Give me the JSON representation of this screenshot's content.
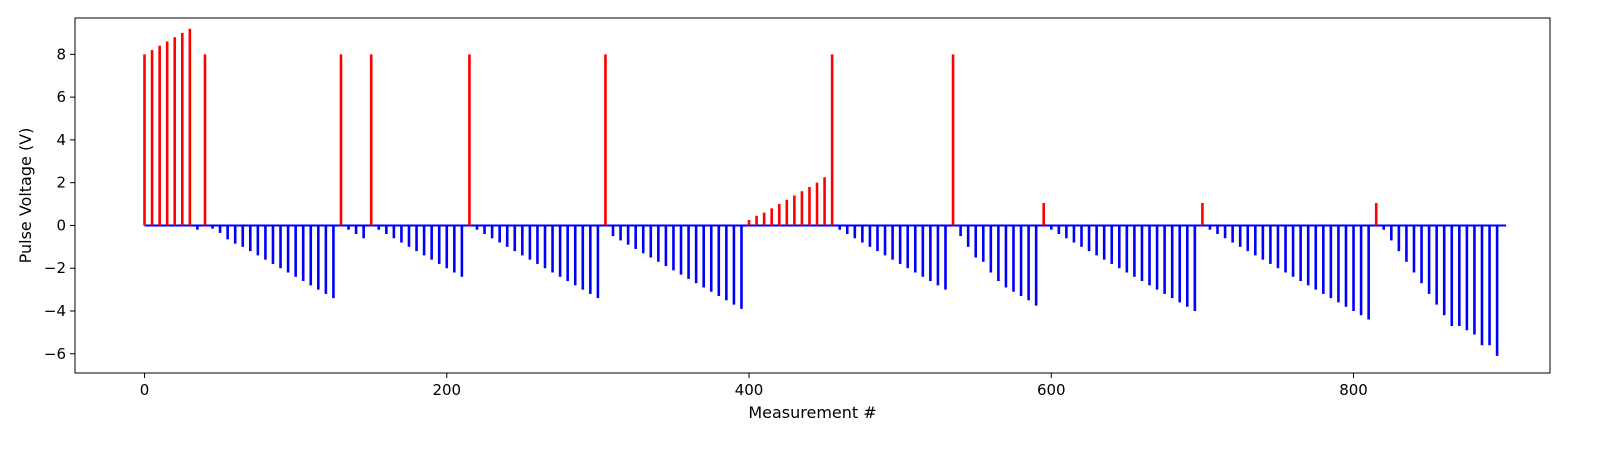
{
  "chart_data": {
    "type": "bar",
    "title": "",
    "xlabel": "Measurement #",
    "ylabel": "Pulse Voltage (V)",
    "xlim": [
      -46,
      930
    ],
    "ylim": [
      -6.9,
      9.7
    ],
    "xticks": [
      0,
      200,
      400,
      600,
      800
    ],
    "yticks": [
      -6,
      -4,
      -2,
      0,
      2,
      4,
      6,
      8
    ],
    "grid": false,
    "legend": "none",
    "colors": {
      "positive": "#ff0000",
      "negative": "#0000ff",
      "baseline": "#0000ff"
    },
    "baseline": {
      "x_start": 0,
      "x_end": 901,
      "y": 0
    },
    "series": [
      {
        "color": "#ff0000",
        "points": [
          [
            0,
            8.0
          ],
          [
            5,
            8.2
          ],
          [
            10,
            8.4
          ],
          [
            15,
            8.6
          ],
          [
            20,
            8.8
          ],
          [
            25,
            9.0
          ],
          [
            30,
            9.2
          ],
          [
            40,
            8.0
          ],
          [
            130,
            8.0
          ],
          [
            150,
            8.0
          ],
          [
            215,
            8.0
          ],
          [
            305,
            8.0
          ],
          [
            400,
            0.25
          ],
          [
            405,
            0.45
          ],
          [
            410,
            0.6
          ],
          [
            415,
            0.8
          ],
          [
            420,
            1.0
          ],
          [
            425,
            1.2
          ],
          [
            430,
            1.4
          ],
          [
            435,
            1.6
          ],
          [
            440,
            1.8
          ],
          [
            445,
            2.0
          ],
          [
            450,
            2.25
          ],
          [
            455,
            8.0
          ],
          [
            535,
            8.0
          ],
          [
            595,
            1.05
          ],
          [
            700,
            1.05
          ],
          [
            815,
            1.05
          ]
        ]
      },
      {
        "color": "#0000ff",
        "points": [
          [
            35,
            -0.2
          ],
          [
            45,
            -0.15
          ],
          [
            50,
            -0.35
          ],
          [
            55,
            -0.65
          ],
          [
            60,
            -0.85
          ],
          [
            65,
            -1.0
          ],
          [
            70,
            -1.2
          ],
          [
            75,
            -1.4
          ],
          [
            80,
            -1.6
          ],
          [
            85,
            -1.8
          ],
          [
            90,
            -2.0
          ],
          [
            95,
            -2.2
          ],
          [
            100,
            -2.4
          ],
          [
            105,
            -2.6
          ],
          [
            110,
            -2.8
          ],
          [
            115,
            -3.0
          ],
          [
            120,
            -3.2
          ],
          [
            125,
            -3.4
          ],
          [
            135,
            -0.2
          ],
          [
            140,
            -0.4
          ],
          [
            145,
            -0.6
          ],
          [
            155,
            -0.2
          ],
          [
            160,
            -0.4
          ],
          [
            165,
            -0.6
          ],
          [
            170,
            -0.8
          ],
          [
            175,
            -1.0
          ],
          [
            180,
            -1.2
          ],
          [
            185,
            -1.4
          ],
          [
            190,
            -1.6
          ],
          [
            195,
            -1.8
          ],
          [
            200,
            -2.0
          ],
          [
            205,
            -2.2
          ],
          [
            210,
            -2.4
          ],
          [
            220,
            -0.2
          ],
          [
            225,
            -0.4
          ],
          [
            230,
            -0.6
          ],
          [
            235,
            -0.8
          ],
          [
            240,
            -1.0
          ],
          [
            245,
            -1.2
          ],
          [
            250,
            -1.4
          ],
          [
            255,
            -1.6
          ],
          [
            260,
            -1.8
          ],
          [
            265,
            -2.0
          ],
          [
            270,
            -2.2
          ],
          [
            275,
            -2.4
          ],
          [
            280,
            -2.6
          ],
          [
            285,
            -2.8
          ],
          [
            290,
            -3.0
          ],
          [
            295,
            -3.2
          ],
          [
            300,
            -3.4
          ],
          [
            310,
            -0.5
          ],
          [
            315,
            -0.7
          ],
          [
            320,
            -0.9
          ],
          [
            325,
            -1.1
          ],
          [
            330,
            -1.3
          ],
          [
            335,
            -1.5
          ],
          [
            340,
            -1.7
          ],
          [
            345,
            -1.9
          ],
          [
            350,
            -2.1
          ],
          [
            355,
            -2.3
          ],
          [
            360,
            -2.5
          ],
          [
            365,
            -2.7
          ],
          [
            370,
            -2.9
          ],
          [
            375,
            -3.1
          ],
          [
            380,
            -3.3
          ],
          [
            385,
            -3.5
          ],
          [
            390,
            -3.7
          ],
          [
            395,
            -3.9
          ],
          [
            460,
            -0.2
          ],
          [
            465,
            -0.4
          ],
          [
            470,
            -0.6
          ],
          [
            475,
            -0.8
          ],
          [
            480,
            -1.0
          ],
          [
            485,
            -1.2
          ],
          [
            490,
            -1.4
          ],
          [
            495,
            -1.6
          ],
          [
            500,
            -1.8
          ],
          [
            505,
            -2.0
          ],
          [
            510,
            -2.2
          ],
          [
            515,
            -2.4
          ],
          [
            520,
            -2.6
          ],
          [
            525,
            -2.8
          ],
          [
            530,
            -3.0
          ],
          [
            540,
            -0.5
          ],
          [
            545,
            -1.0
          ],
          [
            550,
            -1.5
          ],
          [
            555,
            -1.7
          ],
          [
            560,
            -2.2
          ],
          [
            565,
            -2.6
          ],
          [
            570,
            -2.9
          ],
          [
            575,
            -3.1
          ],
          [
            580,
            -3.3
          ],
          [
            585,
            -3.5
          ],
          [
            590,
            -3.75
          ],
          [
            600,
            -0.2
          ],
          [
            605,
            -0.4
          ],
          [
            610,
            -0.6
          ],
          [
            615,
            -0.8
          ],
          [
            620,
            -1.0
          ],
          [
            625,
            -1.2
          ],
          [
            630,
            -1.4
          ],
          [
            635,
            -1.6
          ],
          [
            640,
            -1.8
          ],
          [
            645,
            -2.0
          ],
          [
            650,
            -2.2
          ],
          [
            655,
            -2.4
          ],
          [
            660,
            -2.6
          ],
          [
            665,
            -2.8
          ],
          [
            670,
            -3.0
          ],
          [
            675,
            -3.2
          ],
          [
            680,
            -3.4
          ],
          [
            685,
            -3.6
          ],
          [
            690,
            -3.8
          ],
          [
            695,
            -4.0
          ],
          [
            705,
            -0.2
          ],
          [
            710,
            -0.4
          ],
          [
            715,
            -0.6
          ],
          [
            720,
            -0.8
          ],
          [
            725,
            -1.0
          ],
          [
            730,
            -1.2
          ],
          [
            735,
            -1.4
          ],
          [
            740,
            -1.6
          ],
          [
            745,
            -1.8
          ],
          [
            750,
            -2.0
          ],
          [
            755,
            -2.2
          ],
          [
            760,
            -2.4
          ],
          [
            765,
            -2.6
          ],
          [
            770,
            -2.8
          ],
          [
            775,
            -3.0
          ],
          [
            780,
            -3.2
          ],
          [
            785,
            -3.4
          ],
          [
            790,
            -3.6
          ],
          [
            795,
            -3.8
          ],
          [
            800,
            -4.0
          ],
          [
            805,
            -4.2
          ],
          [
            810,
            -4.4
          ],
          [
            820,
            -0.2
          ],
          [
            825,
            -0.7
          ],
          [
            830,
            -1.2
          ],
          [
            835,
            -1.7
          ],
          [
            840,
            -2.2
          ],
          [
            845,
            -2.7
          ],
          [
            850,
            -3.2
          ],
          [
            855,
            -3.7
          ],
          [
            860,
            -4.2
          ],
          [
            865,
            -4.7
          ],
          [
            870,
            -4.7
          ],
          [
            875,
            -4.9
          ],
          [
            880,
            -5.1
          ],
          [
            885,
            -5.6
          ],
          [
            890,
            -5.6
          ],
          [
            895,
            -6.1
          ]
        ]
      }
    ]
  }
}
